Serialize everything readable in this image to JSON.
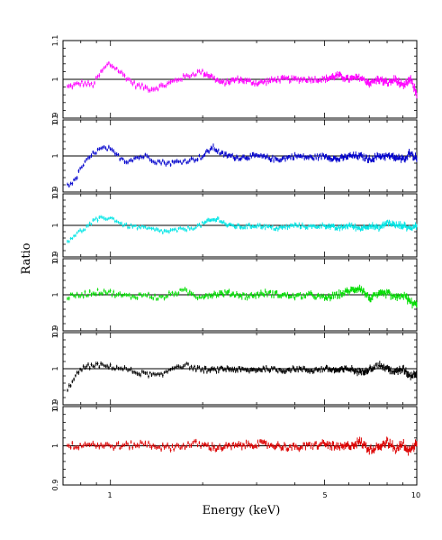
{
  "chart_data": {
    "type": "scatter",
    "layout": "6 vertically stacked panels sharing a logarithmic x axis",
    "xlabel": "Energy (keV)",
    "ylabel": "Ratio",
    "xscale": "log",
    "xlim": [
      0.7,
      10
    ],
    "x_ticklabels": [
      "1",
      "5",
      "10"
    ],
    "reference_line": 1,
    "grid": false,
    "error_bars": true,
    "panels": [
      {
        "color": "#ff00ff",
        "ylim": [
          0.9,
          1.1
        ],
        "y_ticklabels": [
          "0.9",
          "1",
          "1.1"
        ],
        "profile": [
          [
            0.72,
            0.98
          ],
          [
            0.8,
            0.99
          ],
          [
            0.87,
            0.985
          ],
          [
            0.93,
            1.02
          ],
          [
            0.98,
            1.04
          ],
          [
            1.03,
            1.03
          ],
          [
            1.1,
            1.01
          ],
          [
            1.2,
            0.985
          ],
          [
            1.35,
            0.975
          ],
          [
            1.5,
            0.985
          ],
          [
            1.65,
            1.0
          ],
          [
            1.8,
            1.01
          ],
          [
            1.95,
            1.02
          ],
          [
            2.1,
            1.01
          ],
          [
            2.3,
            0.99
          ],
          [
            2.6,
            1.0
          ],
          [
            3.0,
            0.99
          ],
          [
            3.5,
            1.0
          ],
          [
            4.0,
            1.0
          ],
          [
            4.5,
            1.0
          ],
          [
            5.0,
            1.0
          ],
          [
            5.5,
            1.01
          ],
          [
            6.0,
            1.0
          ],
          [
            6.5,
            1.005
          ],
          [
            7.0,
            0.99
          ],
          [
            7.5,
            1.0
          ],
          [
            8.0,
            0.99
          ],
          [
            8.5,
            1.0
          ],
          [
            9.0,
            0.98
          ],
          [
            9.5,
            1.0
          ],
          [
            10.0,
            0.96
          ]
        ],
        "noise": 0.006
      },
      {
        "color": "#0000cc",
        "ylim": [
          0.9,
          1.1
        ],
        "y_ticklabels": [
          "0.9",
          "1",
          "1.1"
        ],
        "profile": [
          [
            0.72,
            0.92
          ],
          [
            0.76,
            0.93
          ],
          [
            0.8,
            0.97
          ],
          [
            0.84,
            0.99
          ],
          [
            0.88,
            1.01
          ],
          [
            0.93,
            1.02
          ],
          [
            0.98,
            1.02
          ],
          [
            1.05,
            1.0
          ],
          [
            1.12,
            0.985
          ],
          [
            1.2,
            0.995
          ],
          [
            1.3,
            1.0
          ],
          [
            1.4,
            0.985
          ],
          [
            1.55,
            0.98
          ],
          [
            1.7,
            0.985
          ],
          [
            1.85,
            0.99
          ],
          [
            2.0,
            1.0
          ],
          [
            2.15,
            1.025
          ],
          [
            2.3,
            1.005
          ],
          [
            2.6,
            0.995
          ],
          [
            3.0,
            1.0
          ],
          [
            3.5,
            0.99
          ],
          [
            4.0,
            1.0
          ],
          [
            4.5,
            0.995
          ],
          [
            5.0,
            1.0
          ],
          [
            5.5,
            0.99
          ],
          [
            6.0,
            1.0
          ],
          [
            6.5,
            1.0
          ],
          [
            7.0,
            0.99
          ],
          [
            7.5,
            1.0
          ],
          [
            8.0,
            1.0
          ],
          [
            8.5,
            0.995
          ],
          [
            9.0,
            0.99
          ],
          [
            9.5,
            1.01
          ],
          [
            10.0,
            0.99
          ]
        ],
        "noise": 0.006
      },
      {
        "color": "#00e5e5",
        "ylim": [
          0.9,
          1.1
        ],
        "y_ticklabels": [
          "0.9",
          "1",
          "1.1"
        ],
        "profile": [
          [
            0.72,
            0.95
          ],
          [
            0.76,
            0.97
          ],
          [
            0.82,
            0.99
          ],
          [
            0.88,
            1.015
          ],
          [
            0.95,
            1.025
          ],
          [
            1.02,
            1.02
          ],
          [
            1.1,
            1.0
          ],
          [
            1.2,
            0.995
          ],
          [
            1.3,
            0.99
          ],
          [
            1.4,
            0.985
          ],
          [
            1.5,
            0.98
          ],
          [
            1.65,
            0.985
          ],
          [
            1.8,
            0.99
          ],
          [
            1.95,
            1.0
          ],
          [
            2.1,
            1.015
          ],
          [
            2.25,
            1.02
          ],
          [
            2.4,
            1.0
          ],
          [
            2.7,
            0.995
          ],
          [
            3.0,
            1.0
          ],
          [
            3.5,
            0.99
          ],
          [
            4.0,
            1.0
          ],
          [
            4.5,
            0.995
          ],
          [
            5.0,
            1.0
          ],
          [
            5.5,
            0.99
          ],
          [
            6.0,
            1.0
          ],
          [
            6.5,
            0.99
          ],
          [
            7.0,
            1.0
          ],
          [
            7.5,
            0.99
          ],
          [
            8.0,
            1.01
          ],
          [
            8.5,
            1.0
          ],
          [
            9.0,
            1.0
          ],
          [
            9.5,
            0.99
          ],
          [
            10.0,
            1.0
          ]
        ],
        "noise": 0.006
      },
      {
        "color": "#00dd00",
        "ylim": [
          0.9,
          1.1
        ],
        "y_ticklabels": [
          "0.9",
          "1",
          "1.1"
        ],
        "profile": [
          [
            0.75,
            0.995
          ],
          [
            0.85,
            1.005
          ],
          [
            0.95,
            1.01
          ],
          [
            1.05,
            1.0
          ],
          [
            1.15,
            0.995
          ],
          [
            1.3,
            1.0
          ],
          [
            1.45,
            0.99
          ],
          [
            1.6,
            1.005
          ],
          [
            1.75,
            1.01
          ],
          [
            1.9,
            0.995
          ],
          [
            2.1,
            1.0
          ],
          [
            2.4,
            1.005
          ],
          [
            2.8,
            0.995
          ],
          [
            3.2,
            1.005
          ],
          [
            3.6,
            1.0
          ],
          [
            4.0,
            0.995
          ],
          [
            4.5,
            1.0
          ],
          [
            5.0,
            0.99
          ],
          [
            5.5,
            1.0
          ],
          [
            6.0,
            1.01
          ],
          [
            6.5,
            1.02
          ],
          [
            7.0,
            0.99
          ],
          [
            7.5,
            1.0
          ],
          [
            8.0,
            1.005
          ],
          [
            8.5,
            0.99
          ],
          [
            9.0,
            1.0
          ],
          [
            9.5,
            0.98
          ],
          [
            10.0,
            0.97
          ]
        ],
        "noise": 0.007
      },
      {
        "color": "#000000",
        "ylim": [
          0.9,
          1.1
        ],
        "y_ticklabels": [
          "0.9",
          "1",
          "1.1"
        ],
        "profile": [
          [
            0.72,
            0.94
          ],
          [
            0.76,
            0.98
          ],
          [
            0.82,
            1.005
          ],
          [
            0.9,
            1.01
          ],
          [
            1.0,
            1.005
          ],
          [
            1.1,
            1.0
          ],
          [
            1.2,
            0.99
          ],
          [
            1.3,
            0.985
          ],
          [
            1.45,
            0.98
          ],
          [
            1.6,
            1.005
          ],
          [
            1.75,
            1.01
          ],
          [
            1.9,
            1.0
          ],
          [
            2.1,
            0.995
          ],
          [
            2.4,
            1.0
          ],
          [
            2.8,
            0.995
          ],
          [
            3.2,
            1.0
          ],
          [
            3.6,
            0.995
          ],
          [
            4.0,
            1.0
          ],
          [
            4.5,
            0.995
          ],
          [
            5.0,
            1.0
          ],
          [
            5.5,
            0.995
          ],
          [
            6.0,
            1.0
          ],
          [
            6.5,
            0.99
          ],
          [
            7.0,
            1.0
          ],
          [
            7.5,
            1.01
          ],
          [
            8.0,
            1.0
          ],
          [
            8.5,
            0.99
          ],
          [
            9.0,
            1.0
          ],
          [
            9.5,
            0.98
          ],
          [
            10.0,
            0.99
          ]
        ],
        "noise": 0.006
      },
      {
        "color": "#dd0000",
        "ylim": [
          0.9,
          1.1
        ],
        "y_ticklabels": [
          "0.9",
          "1",
          "1.1"
        ],
        "profile": [
          [
            0.75,
            1.0
          ],
          [
            0.85,
            1.005
          ],
          [
            0.95,
            1.0
          ],
          [
            1.1,
            1.0
          ],
          [
            1.3,
            1.005
          ],
          [
            1.5,
            0.995
          ],
          [
            1.7,
            1.0
          ],
          [
            1.9,
            1.005
          ],
          [
            2.2,
            0.995
          ],
          [
            2.6,
            1.0
          ],
          [
            3.0,
            1.005
          ],
          [
            3.5,
            1.0
          ],
          [
            4.0,
            0.995
          ],
          [
            4.5,
            1.0
          ],
          [
            5.0,
            1.005
          ],
          [
            5.5,
            0.995
          ],
          [
            6.0,
            1.0
          ],
          [
            6.5,
            1.01
          ],
          [
            7.0,
            0.99
          ],
          [
            7.5,
            1.0
          ],
          [
            8.0,
            1.01
          ],
          [
            8.5,
            0.99
          ],
          [
            9.0,
            1.005
          ],
          [
            9.5,
            0.985
          ],
          [
            10.0,
            1.01
          ]
        ],
        "noise": 0.008
      }
    ]
  }
}
